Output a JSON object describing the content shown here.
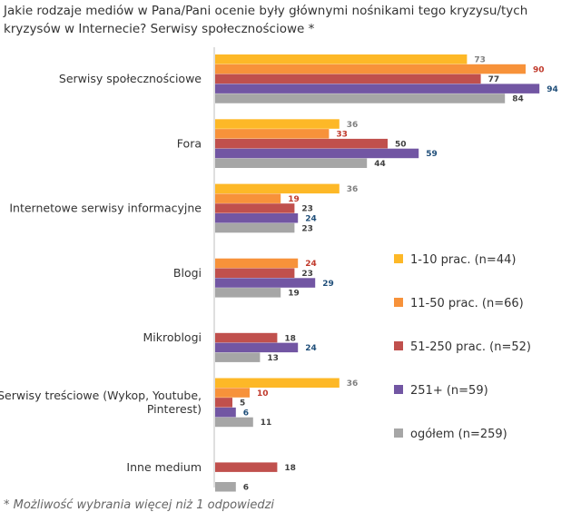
{
  "chart_data": {
    "type": "bar",
    "orientation": "horizontal",
    "title": "Jakie rodzaje mediów w Pana/Pani ocenie były głównymi nośnikami tego kryzysu/tych kryzysów w Internecie? Serwisy społecznościowe  *",
    "categories": [
      [
        "Serwisy społecznościowe"
      ],
      [
        "Fora"
      ],
      [
        "Internetowe serwisy informacyjne"
      ],
      [
        "Blogi"
      ],
      [
        "Mikroblogi"
      ],
      [
        "Serwisy treściowe (Wykop, Youtube,",
        "Pinterest)"
      ],
      [
        "Inne medium"
      ]
    ],
    "series": [
      {
        "name": "1-10 prac. (n=44)",
        "color": "#FDB827",
        "labelColor": "#808080",
        "values": [
          73,
          36,
          36,
          null,
          null,
          36,
          null
        ]
      },
      {
        "name": "11-50 prac. (n=66)",
        "color": "#F7923A",
        "labelColor": "#C0392B",
        "values": [
          90,
          33,
          19,
          24,
          null,
          10,
          null
        ]
      },
      {
        "name": "51-250 prac. (n=52)",
        "color": "#C0504D",
        "labelColor": "#404040",
        "values": [
          77,
          50,
          23,
          23,
          18,
          5,
          18
        ]
      },
      {
        "name": "251+ (n=59)",
        "color": "#7256A3",
        "labelColor": "#1F4E79",
        "values": [
          94,
          59,
          24,
          29,
          24,
          6,
          null
        ]
      },
      {
        "name": "ogółem (n=259)",
        "color": "#A6A6A6",
        "labelColor": "#404040",
        "values": [
          84,
          44,
          23,
          19,
          13,
          11,
          6
        ]
      }
    ],
    "xlim": [
      0,
      100
    ],
    "legend_position": "right",
    "footnote": "* Możliwość wybrania więcej niż 1 odpowiedzi"
  }
}
